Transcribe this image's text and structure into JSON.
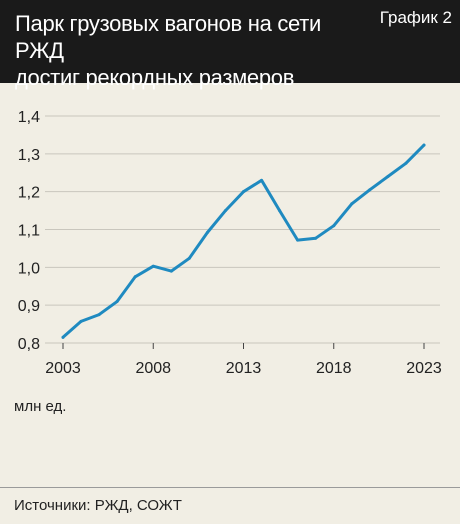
{
  "header": {
    "title_line1": "Парк грузовых вагонов на сети РЖД",
    "title_line2": "достиг рекордных размеров",
    "chart_label": "График 2"
  },
  "units": "млн ед.",
  "source": "Источники: РЖД, СОЖТ",
  "colors": {
    "header_bg": "#1a1a1a",
    "background": "#f1eee4",
    "line": "#1f8ac0",
    "grid": "#c9c6bd"
  },
  "chart_data": {
    "type": "line",
    "x_ticks": [
      2003,
      2008,
      2013,
      2018,
      2023
    ],
    "y_ticks": [
      "0,8",
      "0,9",
      "1,0",
      "1,1",
      "1,2",
      "1,3",
      "1,4"
    ],
    "ylim": [
      0.8,
      1.4
    ],
    "xlim": [
      2003,
      2023
    ],
    "grid": true,
    "series": [
      {
        "x": [
          2003,
          2004,
          2005,
          2006,
          2007,
          2008,
          2009,
          2010,
          2011,
          2012,
          2013,
          2014,
          2015,
          2016,
          2017,
          2018,
          2019,
          2020,
          2021,
          2022,
          2023
        ],
        "values": [
          0.815,
          0.857,
          0.875,
          0.91,
          0.975,
          1.003,
          0.99,
          1.024,
          1.092,
          1.15,
          1.2,
          1.23,
          1.15,
          1.072,
          1.077,
          1.11,
          1.168,
          1.205,
          1.24,
          1.275,
          1.323
        ]
      }
    ]
  }
}
